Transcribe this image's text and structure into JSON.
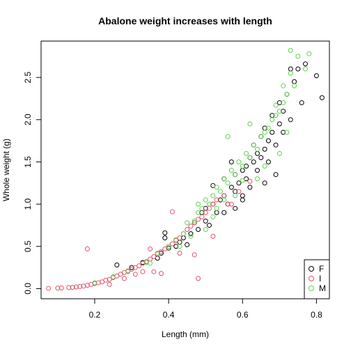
{
  "chart_data": {
    "type": "scatter",
    "title": "Abalone weight increases with length",
    "xlabel": "Length (mm)",
    "ylabel": "Whole weight (g)",
    "xlim": [
      0.055,
      0.835
    ],
    "ylim": [
      -0.12,
      2.93
    ],
    "x_ticks": [
      0.2,
      0.4,
      0.6,
      0.8
    ],
    "x_tick_labels": [
      "0.2",
      "0.4",
      "0.6",
      "0.8"
    ],
    "y_ticks": [
      0.0,
      0.5,
      1.0,
      1.5,
      2.0,
      2.5
    ],
    "y_tick_labels": [
      "0.0",
      "0.5",
      "1.0",
      "1.5",
      "2.0",
      "2.5"
    ],
    "grid": false,
    "legend": {
      "position": "bottom-right",
      "marker": "open-circle"
    },
    "series": [
      {
        "name": "F",
        "color": "#000000",
        "points": [
          [
            0.26,
            0.28
          ],
          [
            0.3,
            0.25
          ],
          [
            0.33,
            0.31
          ],
          [
            0.37,
            0.36
          ],
          [
            0.38,
            0.42
          ],
          [
            0.39,
            0.6
          ],
          [
            0.39,
            0.66
          ],
          [
            0.4,
            0.48
          ],
          [
            0.42,
            0.5
          ],
          [
            0.43,
            0.55
          ],
          [
            0.44,
            0.6
          ],
          [
            0.45,
            0.52
          ],
          [
            0.46,
            0.65
          ],
          [
            0.47,
            0.78
          ],
          [
            0.48,
            0.7
          ],
          [
            0.49,
            0.9
          ],
          [
            0.5,
            0.95
          ],
          [
            0.5,
            0.8
          ],
          [
            0.51,
            0.75
          ],
          [
            0.52,
            1.0
          ],
          [
            0.52,
            1.22
          ],
          [
            0.53,
            0.9
          ],
          [
            0.54,
            1.05
          ],
          [
            0.55,
            1.1
          ],
          [
            0.55,
            1.3
          ],
          [
            0.56,
            1.0
          ],
          [
            0.57,
            1.2
          ],
          [
            0.57,
            1.5
          ],
          [
            0.58,
            1.15
          ],
          [
            0.58,
            1.35
          ],
          [
            0.59,
            1.25
          ],
          [
            0.6,
            1.4
          ],
          [
            0.6,
            1.1
          ],
          [
            0.61,
            1.45
          ],
          [
            0.61,
            1.3
          ],
          [
            0.62,
            1.55
          ],
          [
            0.62,
            1.2
          ],
          [
            0.63,
            1.5
          ],
          [
            0.63,
            1.7
          ],
          [
            0.64,
            1.6
          ],
          [
            0.64,
            1.4
          ],
          [
            0.65,
            1.8
          ],
          [
            0.65,
            1.55
          ],
          [
            0.66,
            1.65
          ],
          [
            0.66,
            1.9
          ],
          [
            0.67,
            1.75
          ],
          [
            0.67,
            1.5
          ],
          [
            0.68,
            1.85
          ],
          [
            0.68,
            2.05
          ],
          [
            0.69,
            1.7
          ],
          [
            0.7,
            1.95
          ],
          [
            0.7,
            2.2
          ],
          [
            0.71,
            1.85
          ],
          [
            0.71,
            2.1
          ],
          [
            0.72,
            2.3
          ],
          [
            0.73,
            2.0
          ],
          [
            0.73,
            2.6
          ],
          [
            0.74,
            2.45
          ],
          [
            0.75,
            2.6
          ],
          [
            0.76,
            2.2
          ],
          [
            0.77,
            2.66
          ],
          [
            0.8,
            2.52
          ],
          [
            0.815,
            2.26
          ],
          [
            0.55,
            0.9
          ],
          [
            0.6,
            1.05
          ],
          [
            0.58,
            0.95
          ],
          [
            0.66,
            1.25
          ],
          [
            0.69,
            1.35
          ]
        ]
      },
      {
        "name": "I",
        "color": "#DF536B",
        "points": [
          [
            0.075,
            0.003
          ],
          [
            0.1,
            0.006
          ],
          [
            0.11,
            0.008
          ],
          [
            0.13,
            0.012
          ],
          [
            0.14,
            0.015
          ],
          [
            0.15,
            0.02
          ],
          [
            0.16,
            0.025
          ],
          [
            0.17,
            0.03
          ],
          [
            0.18,
            0.04
          ],
          [
            0.19,
            0.05
          ],
          [
            0.2,
            0.06
          ],
          [
            0.21,
            0.07
          ],
          [
            0.22,
            0.08
          ],
          [
            0.23,
            0.1
          ],
          [
            0.24,
            0.11
          ],
          [
            0.25,
            0.13
          ],
          [
            0.26,
            0.15
          ],
          [
            0.27,
            0.17
          ],
          [
            0.28,
            0.19
          ],
          [
            0.29,
            0.21
          ],
          [
            0.3,
            0.23
          ],
          [
            0.31,
            0.25
          ],
          [
            0.32,
            0.27
          ],
          [
            0.33,
            0.3
          ],
          [
            0.34,
            0.32
          ],
          [
            0.35,
            0.35
          ],
          [
            0.36,
            0.38
          ],
          [
            0.37,
            0.41
          ],
          [
            0.38,
            0.44
          ],
          [
            0.39,
            0.47
          ],
          [
            0.4,
            0.5
          ],
          [
            0.41,
            0.53
          ],
          [
            0.42,
            0.57
          ],
          [
            0.43,
            0.6
          ],
          [
            0.44,
            0.65
          ],
          [
            0.45,
            0.7
          ],
          [
            0.46,
            0.74
          ],
          [
            0.47,
            0.78
          ],
          [
            0.48,
            0.82
          ],
          [
            0.49,
            0.85
          ],
          [
            0.5,
            0.9
          ],
          [
            0.51,
            0.95
          ],
          [
            0.52,
            1.0
          ],
          [
            0.53,
            1.05
          ],
          [
            0.55,
            1.1
          ],
          [
            0.56,
            1.0
          ],
          [
            0.18,
            0.47
          ],
          [
            0.36,
            0.2
          ],
          [
            0.38,
            0.18
          ],
          [
            0.41,
            0.91
          ],
          [
            0.48,
            0.12
          ],
          [
            0.43,
            0.42
          ],
          [
            0.31,
            0.17
          ],
          [
            0.35,
            0.47
          ],
          [
            0.47,
            0.4
          ],
          [
            0.52,
            0.62
          ],
          [
            0.57,
            1.0
          ],
          [
            0.59,
            1.15
          ],
          [
            0.62,
            1.27
          ],
          [
            0.28,
            0.12
          ],
          [
            0.33,
            0.2
          ],
          [
            0.24,
            0.05
          ]
        ]
      },
      {
        "name": "M",
        "color": "#61D04F",
        "points": [
          [
            0.2,
            0.07
          ],
          [
            0.25,
            0.14
          ],
          [
            0.29,
            0.2
          ],
          [
            0.34,
            0.31
          ],
          [
            0.37,
            0.42
          ],
          [
            0.4,
            0.5
          ],
          [
            0.42,
            0.58
          ],
          [
            0.44,
            0.65
          ],
          [
            0.45,
            0.78
          ],
          [
            0.47,
            0.8
          ],
          [
            0.48,
            0.9
          ],
          [
            0.49,
            0.95
          ],
          [
            0.5,
            1.05
          ],
          [
            0.51,
            1.0
          ],
          [
            0.52,
            1.1
          ],
          [
            0.53,
            1.2
          ],
          [
            0.54,
            1.15
          ],
          [
            0.55,
            1.3
          ],
          [
            0.56,
            1.25
          ],
          [
            0.57,
            1.4
          ],
          [
            0.58,
            1.35
          ],
          [
            0.59,
            1.5
          ],
          [
            0.6,
            1.45
          ],
          [
            0.61,
            1.6
          ],
          [
            0.62,
            1.55
          ],
          [
            0.63,
            1.7
          ],
          [
            0.64,
            1.65
          ],
          [
            0.65,
            1.8
          ],
          [
            0.66,
            1.85
          ],
          [
            0.67,
            1.9
          ],
          [
            0.68,
            2.0
          ],
          [
            0.69,
            2.05
          ],
          [
            0.7,
            2.1
          ],
          [
            0.71,
            2.2
          ],
          [
            0.72,
            2.3
          ],
          [
            0.73,
            2.55
          ],
          [
            0.73,
            2.82
          ],
          [
            0.75,
            2.75
          ],
          [
            0.78,
            2.78
          ],
          [
            0.77,
            2.6
          ],
          [
            0.74,
            2.4
          ],
          [
            0.69,
            2.17
          ],
          [
            0.72,
            1.85
          ],
          [
            0.6,
            1.28
          ],
          [
            0.55,
            1.05
          ],
          [
            0.52,
            0.85
          ],
          [
            0.46,
            0.62
          ],
          [
            0.56,
            1.8
          ],
          [
            0.62,
            1.95
          ],
          [
            0.64,
            1.3
          ],
          [
            0.66,
            1.45
          ],
          [
            0.7,
            1.6
          ],
          [
            0.71,
            2.4
          ],
          [
            0.5,
            0.7
          ],
          [
            0.43,
            0.5
          ],
          [
            0.48,
            1.0
          ],
          [
            0.35,
            0.3
          ],
          [
            0.58,
            1.1
          ],
          [
            0.53,
            0.95
          ]
        ]
      }
    ]
  }
}
